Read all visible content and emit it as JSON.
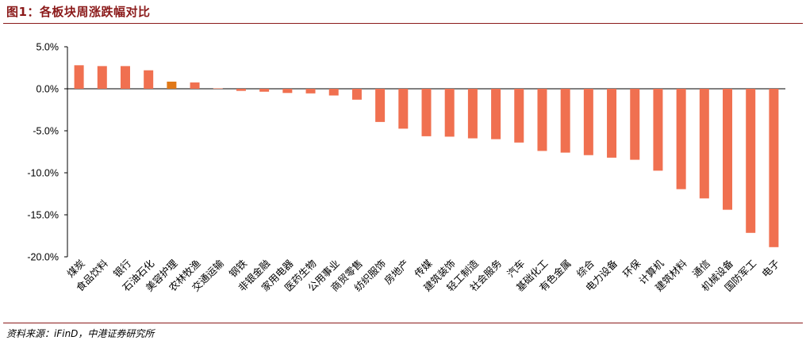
{
  "figure": {
    "title": "图1：各板块周涨跌幅对比",
    "source": "资料来源：iFinD，中港证券研究所"
  },
  "chart_data": {
    "type": "bar",
    "title": "",
    "xlabel": "",
    "ylabel": "",
    "ylim": [
      -20,
      5
    ],
    "yticks": [
      5,
      0,
      -5,
      -10,
      -15,
      -20
    ],
    "ytick_labels": [
      "5.0%",
      "0.0%",
      "-5.0%",
      "-10.0%",
      "-15.0%",
      "-20.0%"
    ],
    "grid": false,
    "legend": "none",
    "colors": {
      "bar": "#f07050",
      "highlight": "#e07818"
    },
    "highlight_index": 4,
    "categories": [
      "煤炭",
      "食品饮料",
      "银行",
      "石油石化",
      "美容护理",
      "农林牧渔",
      "交通运输",
      "钢铁",
      "非银金融",
      "家用电器",
      "医药生物",
      "公用事业",
      "商贸零售",
      "纺织服饰",
      "房地产",
      "传媒",
      "建筑装饰",
      "轻工制造",
      "社会服务",
      "汽车",
      "基础化工",
      "有色金属",
      "综合",
      "电力设备",
      "环保",
      "计算机",
      "建筑材料",
      "通信",
      "机械设备",
      "国防军工",
      "电子"
    ],
    "values": [
      2.8,
      2.7,
      2.7,
      2.2,
      0.85,
      0.75,
      0.05,
      -0.25,
      -0.35,
      -0.5,
      -0.55,
      -0.8,
      -1.3,
      -3.95,
      -4.75,
      -5.65,
      -5.7,
      -5.9,
      -6.0,
      -6.4,
      -7.4,
      -7.6,
      -7.9,
      -8.2,
      -8.45,
      -9.75,
      -11.95,
      -13.05,
      -14.4,
      -17.15,
      -18.85
    ]
  }
}
